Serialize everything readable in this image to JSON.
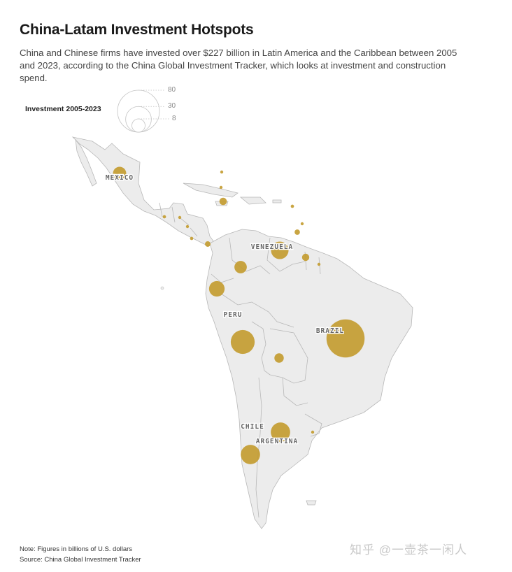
{
  "title": "China-Latam Investment Hotspots",
  "subtitle": "China and Chinese firms have invested over $227 billion in Latin America and the Caribbean between 2005 and 2023, according to the China Global Investment Tracker, which looks at investment and construction spend.",
  "legend": {
    "title": "Investment 2005-2023",
    "values": [
      "80",
      "30",
      "8"
    ]
  },
  "countries": {
    "mexico": "MEXICO",
    "venezuela": "VENEZUELA",
    "peru": "PERU",
    "brazil": "BRAZIL",
    "chile": "CHILE",
    "argentina": "ARGENTINA"
  },
  "investments": [
    {
      "name": "Mexico",
      "value": 8
    },
    {
      "name": "Bahamas",
      "value": 0.2
    },
    {
      "name": "Cuba",
      "value": 0.4
    },
    {
      "name": "Jamaica",
      "value": 2.5
    },
    {
      "name": "Dominica",
      "value": 0.5
    },
    {
      "name": "Barbados",
      "value": 0.3
    },
    {
      "name": "Trinidad and Tobago",
      "value": 1.3
    },
    {
      "name": "Guatemala",
      "value": 0.5
    },
    {
      "name": "Honduras",
      "value": 0.3
    },
    {
      "name": "Nicaragua",
      "value": 0.4
    },
    {
      "name": "Costa Rica",
      "value": 0.5
    },
    {
      "name": "Panama",
      "value": 1.4
    },
    {
      "name": "Venezuela",
      "value": 14
    },
    {
      "name": "Guyana",
      "value": 2.4
    },
    {
      "name": "Suriname",
      "value": 0.3
    },
    {
      "name": "Colombia",
      "value": 7
    },
    {
      "name": "Ecuador",
      "value": 11
    },
    {
      "name": "Peru",
      "value": 26
    },
    {
      "name": "Bolivia",
      "value": 4
    },
    {
      "name": "Brazil",
      "value": 66
    },
    {
      "name": "Chile",
      "value": 17
    },
    {
      "name": "Argentina",
      "value": 17
    },
    {
      "name": "Uruguay",
      "value": 0.3
    }
  ],
  "footer": {
    "note": "Note: Figures in billions of U.S. dollars",
    "source": "Source: China Global Investment Tracker"
  },
  "watermark": "知乎 @一壶茶一闲人",
  "colors": {
    "bubble": "#c39b2e",
    "land": "#ececec",
    "border": "#b8b8b8"
  }
}
